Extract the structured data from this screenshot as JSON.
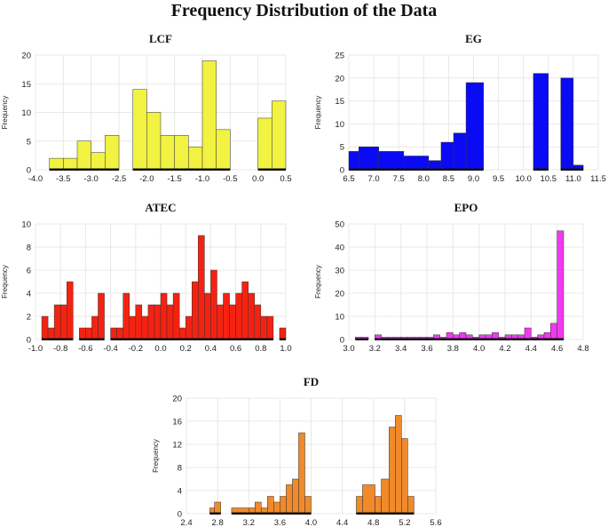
{
  "title": "Frequency Distribution of the Data",
  "chart_data": [
    {
      "type": "bar",
      "name": "LCF",
      "title": "LCF",
      "ylabel": "Frequency",
      "xlim": [
        -4.0,
        0.5
      ],
      "ylim": [
        0,
        20
      ],
      "xticks": [
        -4.0,
        -3.5,
        -3.0,
        -2.5,
        -2.0,
        -1.5,
        -1.0,
        -0.5,
        0.0,
        0.5
      ],
      "xtick_labels": [
        "-4.0",
        "-3.5",
        "-3.0",
        "-2.5",
        "-2.0",
        "-1.5",
        "-1.0",
        "-0.5",
        "0.0",
        "0.5"
      ],
      "yticks": [
        0,
        5,
        10,
        15,
        20
      ],
      "color": "#f2f242",
      "bins": [
        {
          "x0": -3.75,
          "x1": -3.5,
          "count": 2
        },
        {
          "x0": -3.5,
          "x1": -3.25,
          "count": 2
        },
        {
          "x0": -3.25,
          "x1": -3.0,
          "count": 5
        },
        {
          "x0": -3.0,
          "x1": -2.75,
          "count": 3
        },
        {
          "x0": -2.75,
          "x1": -2.5,
          "count": 6
        },
        {
          "x0": -2.25,
          "x1": -2.0,
          "count": 14
        },
        {
          "x0": -2.0,
          "x1": -1.75,
          "count": 10
        },
        {
          "x0": -1.75,
          "x1": -1.5,
          "count": 6
        },
        {
          "x0": -1.5,
          "x1": -1.25,
          "count": 6
        },
        {
          "x0": -1.25,
          "x1": -1.0,
          "count": 4
        },
        {
          "x0": -1.0,
          "x1": -0.75,
          "count": 19
        },
        {
          "x0": -0.75,
          "x1": -0.5,
          "count": 7
        },
        {
          "x0": 0.0,
          "x1": 0.25,
          "count": 9
        },
        {
          "x0": 0.25,
          "x1": 0.5,
          "count": 12
        }
      ]
    },
    {
      "type": "bar",
      "name": "EG",
      "title": "EG",
      "ylabel": "Frequency",
      "xlim": [
        6.5,
        11.5
      ],
      "ylim": [
        0,
        25
      ],
      "xticks": [
        6.5,
        7.0,
        7.5,
        8.0,
        8.5,
        9.0,
        9.5,
        10.0,
        10.5,
        11.0,
        11.5
      ],
      "xtick_labels": [
        "6.5",
        "7.0",
        "7.5",
        "8.0",
        "8.5",
        "9.0",
        "9.5",
        "10.0",
        "10.5",
        "11.0",
        "11.5"
      ],
      "yticks": [
        0,
        5,
        10,
        15,
        20,
        25
      ],
      "color": "#0a0af5",
      "bins": [
        {
          "x0": 6.5,
          "x1": 6.7,
          "count": 4
        },
        {
          "x0": 6.7,
          "x1": 7.1,
          "count": 5
        },
        {
          "x0": 7.1,
          "x1": 7.6,
          "count": 4
        },
        {
          "x0": 7.6,
          "x1": 8.1,
          "count": 3
        },
        {
          "x0": 8.1,
          "x1": 8.35,
          "count": 2
        },
        {
          "x0": 8.35,
          "x1": 8.6,
          "count": 6
        },
        {
          "x0": 8.6,
          "x1": 8.85,
          "count": 8
        },
        {
          "x0": 8.85,
          "x1": 9.2,
          "count": 19
        },
        {
          "x0": 10.2,
          "x1": 10.5,
          "count": 21
        },
        {
          "x0": 10.75,
          "x1": 11.0,
          "count": 20
        },
        {
          "x0": 11.0,
          "x1": 11.2,
          "count": 1
        }
      ]
    },
    {
      "type": "bar",
      "name": "ATEC",
      "title": "ATEC",
      "ylabel": "Frequency",
      "xlim": [
        -1.0,
        1.0
      ],
      "ylim": [
        0,
        10
      ],
      "xticks": [
        -1.0,
        -0.8,
        -0.6,
        -0.4,
        -0.2,
        0.0,
        0.2,
        0.4,
        0.6,
        0.8,
        1.0
      ],
      "xtick_labels": [
        "-1.0",
        "-0.8",
        "-0.6",
        "-0.4",
        "-0.2",
        "0.0",
        "0.2",
        "0.4",
        "0.6",
        "0.8",
        "1.0"
      ],
      "yticks": [
        0,
        2,
        4,
        6,
        8,
        10
      ],
      "color": "#f52211",
      "bins": [
        {
          "x0": -0.95,
          "x1": -0.9,
          "count": 2
        },
        {
          "x0": -0.9,
          "x1": -0.85,
          "count": 1
        },
        {
          "x0": -0.85,
          "x1": -0.8,
          "count": 3
        },
        {
          "x0": -0.8,
          "x1": -0.75,
          "count": 3
        },
        {
          "x0": -0.75,
          "x1": -0.7,
          "count": 5
        },
        {
          "x0": -0.65,
          "x1": -0.6,
          "count": 1
        },
        {
          "x0": -0.6,
          "x1": -0.55,
          "count": 1
        },
        {
          "x0": -0.55,
          "x1": -0.5,
          "count": 2
        },
        {
          "x0": -0.5,
          "x1": -0.45,
          "count": 4
        },
        {
          "x0": -0.4,
          "x1": -0.35,
          "count": 1
        },
        {
          "x0": -0.35,
          "x1": -0.3,
          "count": 1
        },
        {
          "x0": -0.3,
          "x1": -0.25,
          "count": 4
        },
        {
          "x0": -0.25,
          "x1": -0.2,
          "count": 2
        },
        {
          "x0": -0.2,
          "x1": -0.15,
          "count": 3
        },
        {
          "x0": -0.15,
          "x1": -0.1,
          "count": 2
        },
        {
          "x0": -0.1,
          "x1": -0.05,
          "count": 3
        },
        {
          "x0": -0.05,
          "x1": 0.0,
          "count": 3
        },
        {
          "x0": 0.0,
          "x1": 0.05,
          "count": 4
        },
        {
          "x0": 0.05,
          "x1": 0.1,
          "count": 3
        },
        {
          "x0": 0.1,
          "x1": 0.15,
          "count": 4
        },
        {
          "x0": 0.15,
          "x1": 0.2,
          "count": 1
        },
        {
          "x0": 0.2,
          "x1": 0.25,
          "count": 2
        },
        {
          "x0": 0.25,
          "x1": 0.3,
          "count": 5
        },
        {
          "x0": 0.3,
          "x1": 0.35,
          "count": 9
        },
        {
          "x0": 0.35,
          "x1": 0.4,
          "count": 4
        },
        {
          "x0": 0.4,
          "x1": 0.45,
          "count": 6
        },
        {
          "x0": 0.45,
          "x1": 0.5,
          "count": 3
        },
        {
          "x0": 0.5,
          "x1": 0.55,
          "count": 4
        },
        {
          "x0": 0.55,
          "x1": 0.6,
          "count": 3
        },
        {
          "x0": 0.6,
          "x1": 0.65,
          "count": 4
        },
        {
          "x0": 0.65,
          "x1": 0.7,
          "count": 5
        },
        {
          "x0": 0.7,
          "x1": 0.75,
          "count": 4
        },
        {
          "x0": 0.75,
          "x1": 0.8,
          "count": 3
        },
        {
          "x0": 0.8,
          "x1": 0.85,
          "count": 2
        },
        {
          "x0": 0.85,
          "x1": 0.9,
          "count": 2
        },
        {
          "x0": 0.95,
          "x1": 1.0,
          "count": 1
        }
      ]
    },
    {
      "type": "bar",
      "name": "EPO",
      "title": "EPO",
      "ylabel": "Frequency",
      "xlim": [
        3.0,
        4.8
      ],
      "ylim": [
        0,
        50
      ],
      "xticks": [
        3.0,
        3.2,
        3.4,
        3.6,
        3.8,
        4.0,
        4.2,
        4.4,
        4.6,
        4.8
      ],
      "xtick_labels": [
        "3.0",
        "3.2",
        "3.4",
        "3.6",
        "3.8",
        "4.0",
        "4.2",
        "4.4",
        "4.6",
        "4.8"
      ],
      "yticks": [
        0,
        10,
        20,
        30,
        40,
        50
      ],
      "color": "#f03af0",
      "bins": [
        {
          "x0": 3.05,
          "x1": 3.1,
          "count": 1
        },
        {
          "x0": 3.1,
          "x1": 3.15,
          "count": 1
        },
        {
          "x0": 3.2,
          "x1": 3.25,
          "count": 2
        },
        {
          "x0": 3.25,
          "x1": 3.3,
          "count": 1
        },
        {
          "x0": 3.3,
          "x1": 3.35,
          "count": 1
        },
        {
          "x0": 3.35,
          "x1": 3.4,
          "count": 1
        },
        {
          "x0": 3.4,
          "x1": 3.45,
          "count": 1
        },
        {
          "x0": 3.45,
          "x1": 3.5,
          "count": 1
        },
        {
          "x0": 3.5,
          "x1": 3.55,
          "count": 1
        },
        {
          "x0": 3.55,
          "x1": 3.6,
          "count": 1
        },
        {
          "x0": 3.6,
          "x1": 3.65,
          "count": 1
        },
        {
          "x0": 3.65,
          "x1": 3.7,
          "count": 2
        },
        {
          "x0": 3.7,
          "x1": 3.75,
          "count": 1
        },
        {
          "x0": 3.75,
          "x1": 3.8,
          "count": 3
        },
        {
          "x0": 3.8,
          "x1": 3.85,
          "count": 2
        },
        {
          "x0": 3.85,
          "x1": 3.9,
          "count": 3
        },
        {
          "x0": 3.9,
          "x1": 3.95,
          "count": 2
        },
        {
          "x0": 3.95,
          "x1": 4.0,
          "count": 1
        },
        {
          "x0": 4.0,
          "x1": 4.05,
          "count": 2
        },
        {
          "x0": 4.05,
          "x1": 4.1,
          "count": 2
        },
        {
          "x0": 4.1,
          "x1": 4.15,
          "count": 3
        },
        {
          "x0": 4.15,
          "x1": 4.2,
          "count": 1
        },
        {
          "x0": 4.2,
          "x1": 4.25,
          "count": 2
        },
        {
          "x0": 4.25,
          "x1": 4.3,
          "count": 2
        },
        {
          "x0": 4.3,
          "x1": 4.35,
          "count": 2
        },
        {
          "x0": 4.35,
          "x1": 4.4,
          "count": 5
        },
        {
          "x0": 4.4,
          "x1": 4.45,
          "count": 1
        },
        {
          "x0": 4.45,
          "x1": 4.5,
          "count": 2
        },
        {
          "x0": 4.5,
          "x1": 4.55,
          "count": 3
        },
        {
          "x0": 4.55,
          "x1": 4.6,
          "count": 7
        },
        {
          "x0": 4.6,
          "x1": 4.65,
          "count": 47
        }
      ]
    },
    {
      "type": "bar",
      "name": "FD",
      "title": "FD",
      "ylabel": "Frequency",
      "xlim": [
        2.4,
        5.6
      ],
      "ylim": [
        0,
        20
      ],
      "xticks": [
        2.4,
        2.8,
        3.2,
        3.6,
        4.0,
        4.4,
        4.8,
        5.2,
        5.6
      ],
      "xtick_labels": [
        "2.4",
        "2.8",
        "3.2",
        "3.6",
        "4.0",
        "4.4",
        "4.8",
        "5.2",
        "5.6"
      ],
      "yticks": [
        0,
        4,
        8,
        12,
        16,
        20
      ],
      "color": "#f08a2a",
      "bins": [
        {
          "x0": 2.7,
          "x1": 2.76,
          "count": 1
        },
        {
          "x0": 2.76,
          "x1": 2.84,
          "count": 2
        },
        {
          "x0": 2.98,
          "x1": 3.2,
          "count": 1
        },
        {
          "x0": 3.2,
          "x1": 3.28,
          "count": 1
        },
        {
          "x0": 3.28,
          "x1": 3.36,
          "count": 2
        },
        {
          "x0": 3.36,
          "x1": 3.44,
          "count": 1
        },
        {
          "x0": 3.44,
          "x1": 3.52,
          "count": 3
        },
        {
          "x0": 3.52,
          "x1": 3.6,
          "count": 2
        },
        {
          "x0": 3.6,
          "x1": 3.68,
          "count": 3
        },
        {
          "x0": 3.68,
          "x1": 3.76,
          "count": 5
        },
        {
          "x0": 3.76,
          "x1": 3.84,
          "count": 6
        },
        {
          "x0": 3.84,
          "x1": 3.92,
          "count": 14
        },
        {
          "x0": 3.92,
          "x1": 4.0,
          "count": 3
        },
        {
          "x0": 4.58,
          "x1": 4.66,
          "count": 3
        },
        {
          "x0": 4.66,
          "x1": 4.82,
          "count": 5
        },
        {
          "x0": 4.82,
          "x1": 4.9,
          "count": 3
        },
        {
          "x0": 4.9,
          "x1": 5.0,
          "count": 6
        },
        {
          "x0": 5.0,
          "x1": 5.08,
          "count": 15
        },
        {
          "x0": 5.08,
          "x1": 5.16,
          "count": 17
        },
        {
          "x0": 5.16,
          "x1": 5.24,
          "count": 13
        },
        {
          "x0": 5.24,
          "x1": 5.32,
          "count": 3
        }
      ]
    }
  ]
}
